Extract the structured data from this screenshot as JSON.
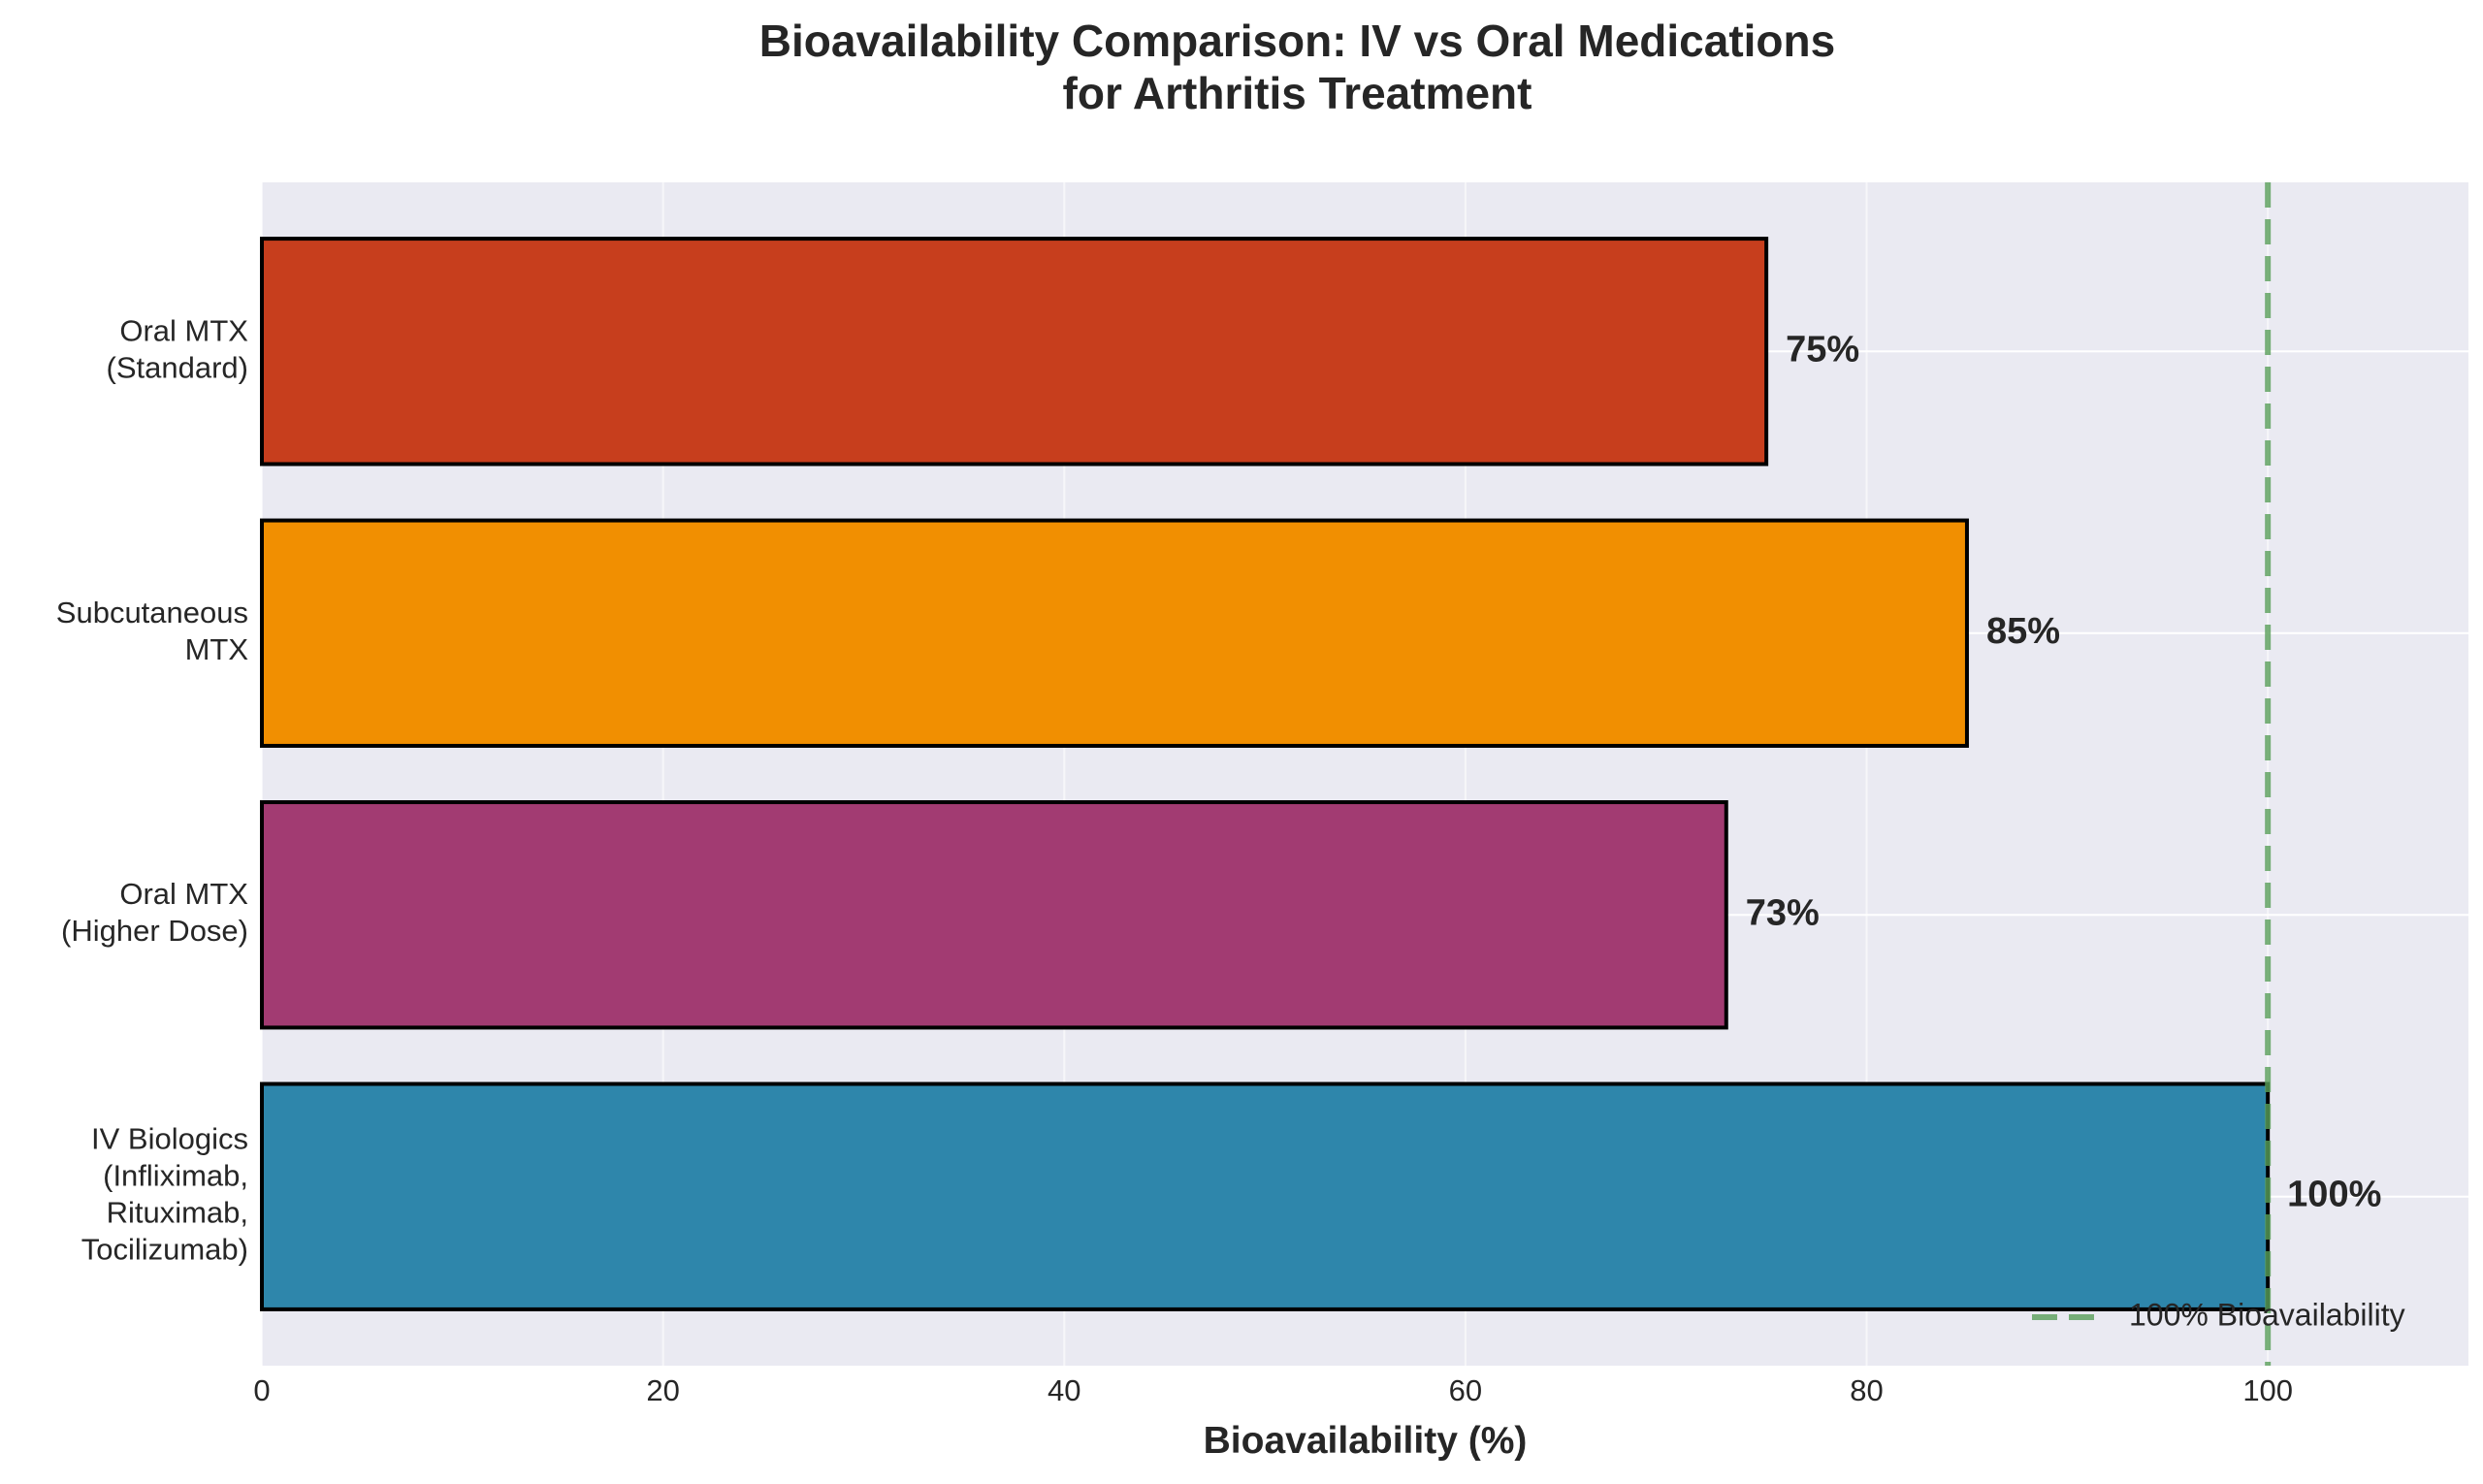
{
  "chart_data": {
    "type": "bar",
    "orientation": "horizontal",
    "title": "Bioavailability Comparison: IV vs Oral Medications\nfor Arthritis Treatment",
    "xlabel": "Bioavailability (%)",
    "ylabel": "",
    "xlim": [
      0,
      110
    ],
    "xticks": [
      0,
      20,
      40,
      60,
      80,
      100
    ],
    "grid": true,
    "legend_position": "lower-right",
    "categories": [
      "IV Biologics\n(Infliximab,\nRituximab,\nTocilizumab)",
      "Oral MTX\n(Higher Dose)",
      "Subcutaneous\nMTX",
      "Oral MTX\n(Standard)"
    ],
    "values": [
      100,
      73,
      85,
      75
    ],
    "value_labels": [
      "100%",
      "73%",
      "85%",
      "75%"
    ],
    "colors": [
      "#2e86ab",
      "#a23b72",
      "#f18f01",
      "#c73e1d"
    ],
    "reference_line": {
      "value": 100,
      "label": "100% Bioavailability",
      "color": "#5aa05a",
      "style": "dashed"
    },
    "background_color": "#eaeaf2"
  }
}
